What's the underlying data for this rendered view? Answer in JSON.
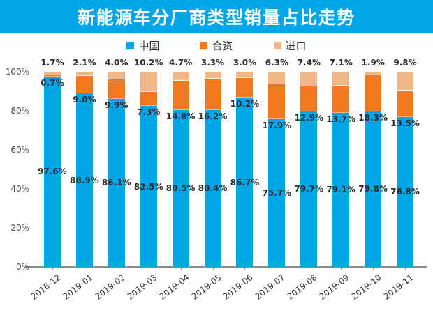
{
  "title": "新能源车分厂商类型销量占比走势",
  "legend": [
    {
      "key": "china",
      "label": "中国",
      "color": "#00a6e8"
    },
    {
      "key": "hezi",
      "label": "合资",
      "color": "#f2791f"
    },
    {
      "key": "jinkou",
      "label": "进口",
      "color": "#f0b888"
    }
  ],
  "chart_data": {
    "type": "bar",
    "stacked": true,
    "title": "新能源车分厂商类型销量占比走势",
    "categories": [
      "2018-12",
      "2019-01",
      "2019-02",
      "2019-03",
      "2019-04",
      "2019-05",
      "2019-06",
      "2019-07",
      "2019-08",
      "2019-09",
      "2019-10",
      "2019-11"
    ],
    "series": [
      {
        "key": "china",
        "name": "中国",
        "color": "#00a6e8",
        "values": [
          97.6,
          88.9,
          86.1,
          82.5,
          80.5,
          80.4,
          86.7,
          75.7,
          79.7,
          79.1,
          79.8,
          76.8
        ]
      },
      {
        "key": "hezi",
        "name": "合资",
        "color": "#f2791f",
        "values": [
          0.7,
          9.0,
          9.9,
          7.3,
          14.8,
          16.2,
          10.2,
          17.9,
          12.9,
          13.7,
          18.3,
          13.5
        ]
      },
      {
        "key": "jinkou",
        "name": "进口",
        "color": "#f0b888",
        "values": [
          1.7,
          2.1,
          4.0,
          10.2,
          4.7,
          3.3,
          3.0,
          6.3,
          7.4,
          7.1,
          1.9,
          9.8
        ]
      }
    ],
    "xlabel": "",
    "ylabel": "",
    "ylim": [
      0,
      100
    ],
    "y_ticks": [
      "0%",
      "20%",
      "40%",
      "60%",
      "80%",
      "100%"
    ],
    "value_suffix": "%",
    "grid": false,
    "legend_position": "top"
  }
}
